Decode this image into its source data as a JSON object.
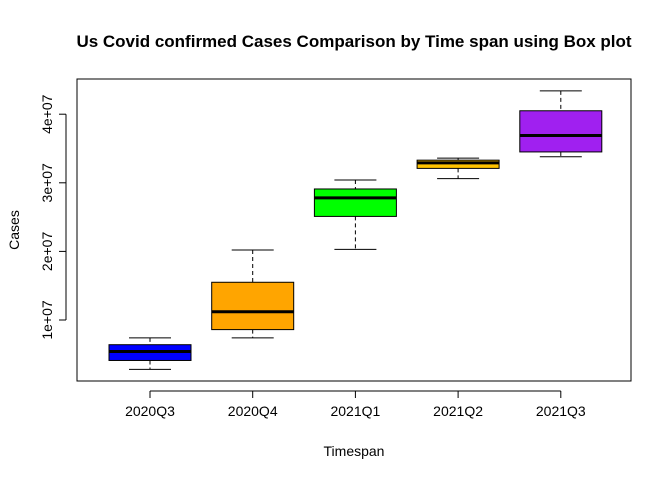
{
  "chart_data": {
    "type": "boxplot",
    "title": "Us Covid confirmed Cases Comparison by Time span using Box plot",
    "xlabel": "Timespan",
    "ylabel": "Cases",
    "categories": [
      "2020Q3",
      "2020Q4",
      "2021Q1",
      "2021Q2",
      "2021Q3"
    ],
    "yticks": [
      10000000,
      20000000,
      30000000,
      40000000
    ],
    "ytick_labels": [
      "1e+07",
      "2e+07",
      "3e+07",
      "4e+07"
    ],
    "ylim": [
      2300000,
      45500000
    ],
    "grid": false,
    "boxes": [
      {
        "category": "2020Q3",
        "min": 2800000,
        "q1": 4100000,
        "median": 5400000,
        "q3": 6400000,
        "max": 7400000,
        "color": "#0000FF"
      },
      {
        "category": "2020Q4",
        "min": 7400000,
        "q1": 8600000,
        "median": 11200000,
        "q3": 15500000,
        "max": 20200000,
        "color": "#FFA500"
      },
      {
        "category": "2021Q1",
        "min": 20300000,
        "q1": 25100000,
        "median": 27800000,
        "q3": 29100000,
        "max": 30400000,
        "color": "#00FF00"
      },
      {
        "category": "2021Q2",
        "min": 30600000,
        "q1": 32100000,
        "median": 32900000,
        "q3": 33300000,
        "max": 33600000,
        "color": "#FFC300"
      },
      {
        "category": "2021Q3",
        "min": 33800000,
        "q1": 34500000,
        "median": 36900000,
        "q3": 40500000,
        "max": 43400000,
        "color": "#A020F0"
      }
    ]
  }
}
